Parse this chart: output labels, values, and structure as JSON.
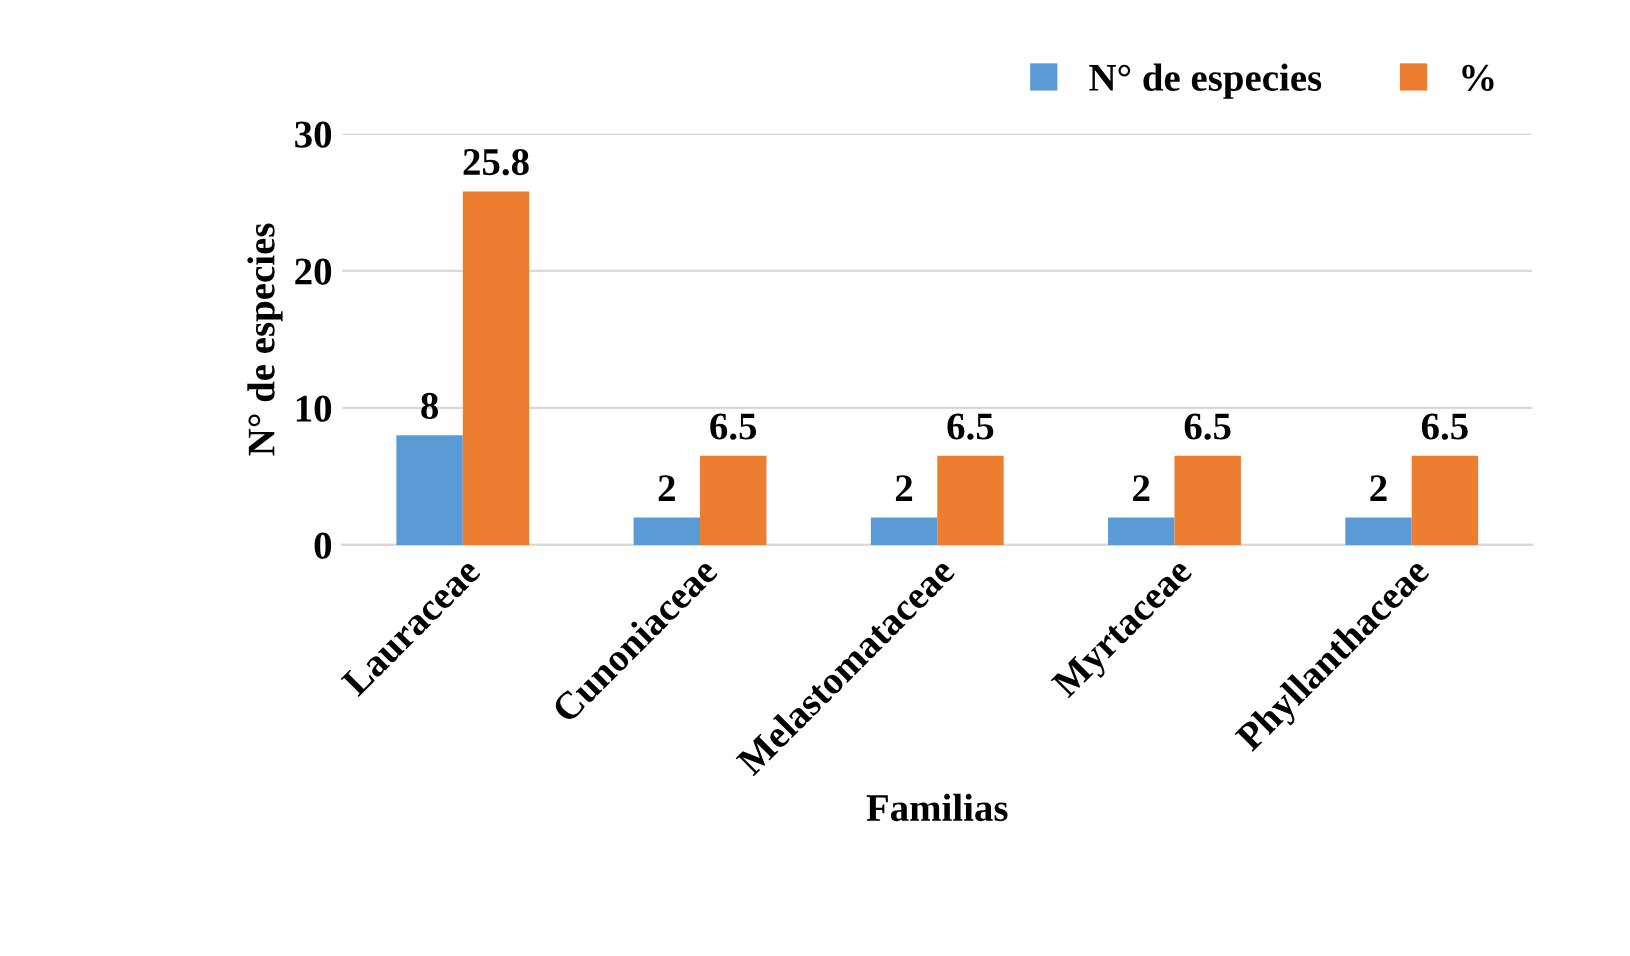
{
  "chart_data": {
    "type": "bar",
    "xlabel": "Familias",
    "ylabel": "N° de especies",
    "categories": [
      "Lauraceae",
      "Cunoniaceae",
      "Melastomataceae",
      "Myrtaceae",
      "Phyllanthaceae"
    ],
    "series": [
      {
        "name": "N° de especies",
        "color": "#5b9bd5",
        "values": [
          8,
          2,
          2,
          2,
          2
        ]
      },
      {
        "name": "%",
        "color": "#ed7d31",
        "values": [
          25.8,
          6.5,
          6.5,
          6.5,
          6.5
        ]
      }
    ],
    "ylim": [
      0,
      30
    ],
    "yticks": [
      0,
      10,
      20,
      30
    ],
    "grid": "y",
    "legend": "top right",
    "data_labels": true
  }
}
